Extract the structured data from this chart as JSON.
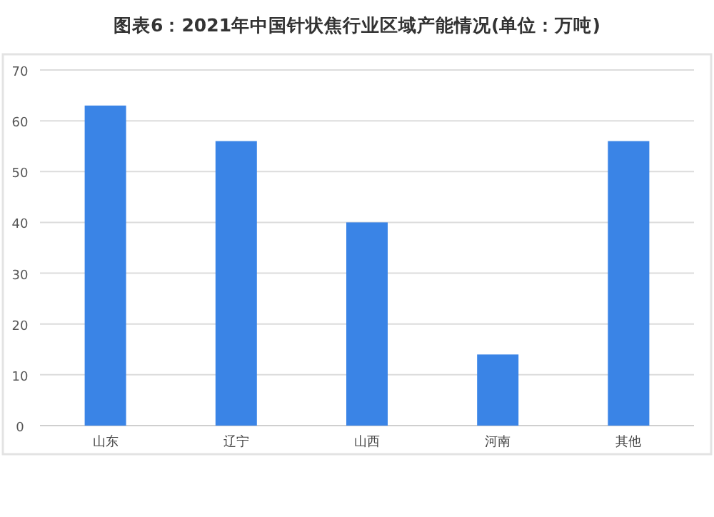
{
  "chart_data": {
    "type": "bar",
    "title": "图表6：2021年中国针状焦行业区域产能情况(单位：万吨)",
    "categories": [
      "山东",
      "辽宁",
      "山西",
      "河南",
      "其他"
    ],
    "values": [
      63,
      56,
      40,
      14,
      56
    ],
    "color": "#3a84e6",
    "ylim": [
      0,
      70
    ],
    "yticks": [
      0,
      10,
      20,
      30,
      40,
      50,
      60,
      70
    ],
    "grid": "y"
  }
}
